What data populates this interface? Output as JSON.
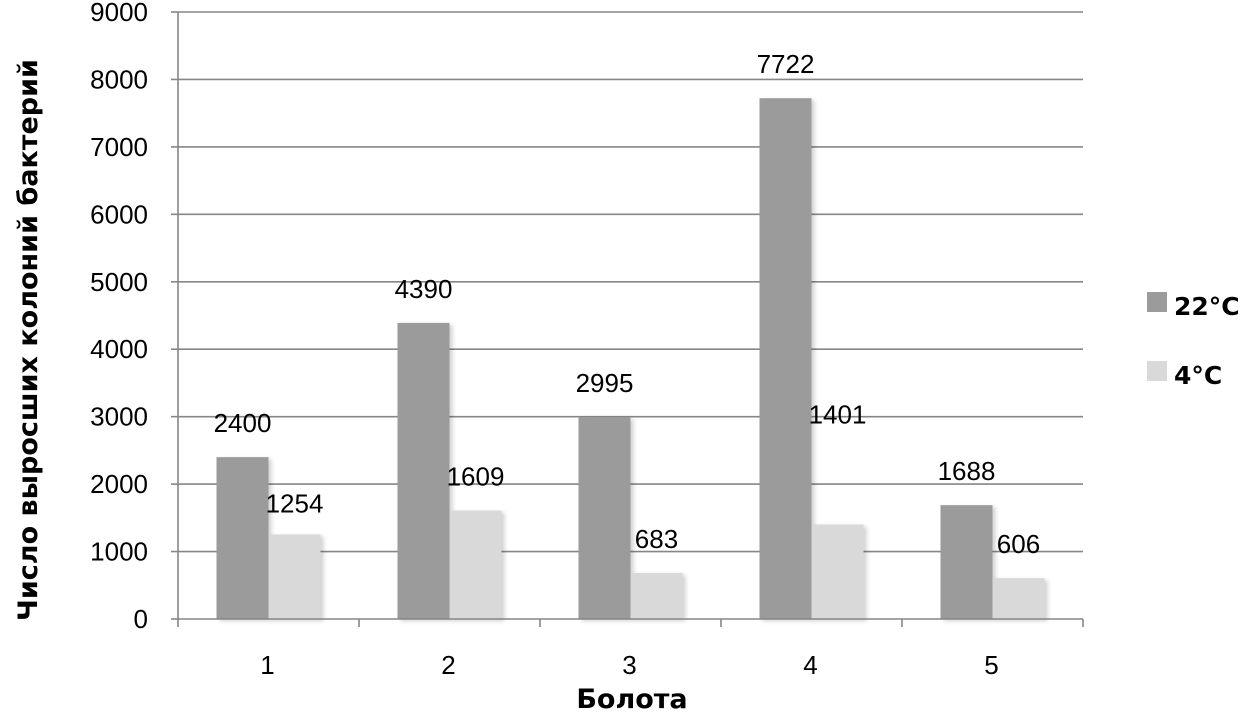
{
  "chart_data": {
    "type": "bar",
    "title": "",
    "xlabel": "Болота",
    "ylabel": "Число выросших колоний бактерий",
    "categories": [
      "1",
      "2",
      "3",
      "4",
      "5"
    ],
    "ylim": [
      0,
      9000
    ],
    "yticks": [
      "0",
      "1000",
      "2000",
      "3000",
      "4000",
      "5000",
      "6000",
      "7000",
      "8000",
      "9000"
    ],
    "grid": true,
    "legend_position": "right",
    "series": [
      {
        "name": "22°C",
        "color": "#9b9b9b",
        "values": [
          2400,
          4390,
          2995,
          7722,
          1688
        ],
        "labels": [
          "2400",
          "4390",
          "2995",
          "7722",
          "1688"
        ]
      },
      {
        "name": "4°C",
        "color": "#d9d9d9",
        "values": [
          1254,
          1609,
          683,
          1401,
          606
        ],
        "labels": [
          "1254",
          "1609",
          "683",
          "1401",
          "606"
        ]
      }
    ]
  }
}
